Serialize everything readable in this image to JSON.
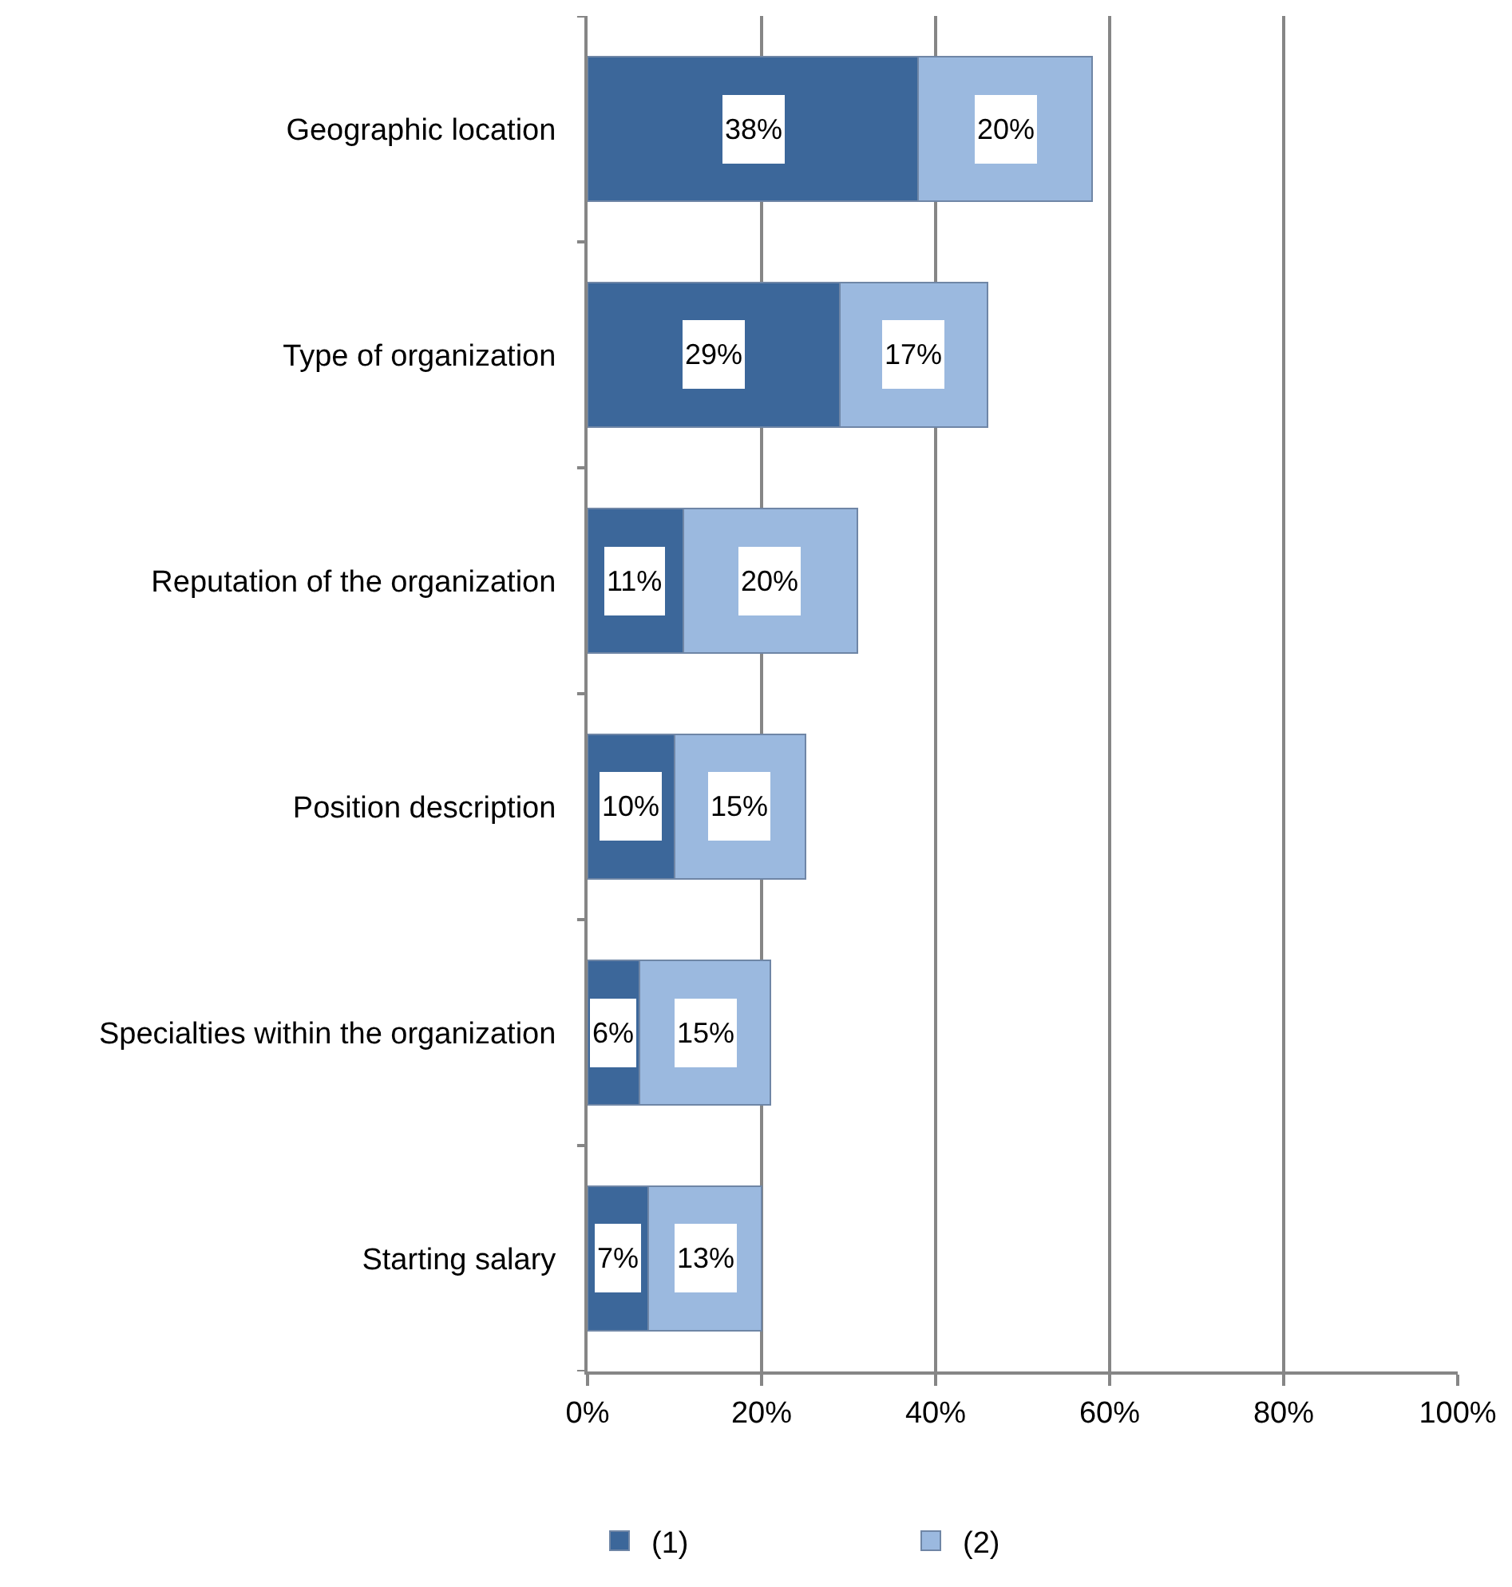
{
  "chart_data": {
    "type": "bar",
    "orientation": "horizontal",
    "stacked": true,
    "categories": [
      "Geographic location",
      "Type of organization",
      "Reputation of the organization",
      "Position description",
      "Specialties within the organization",
      "Starting salary"
    ],
    "series": [
      {
        "name": "(1)",
        "color": "#3c679a",
        "values": [
          38,
          29,
          11,
          10,
          6,
          7
        ],
        "value_labels": [
          "38%",
          "29%",
          "11%",
          "10%",
          "6%",
          "7%"
        ]
      },
      {
        "name": "(2)",
        "color": "#9bb9df",
        "values": [
          20,
          17,
          20,
          15,
          15,
          13
        ],
        "value_labels": [
          "20%",
          "17%",
          "20%",
          "15%",
          "15%",
          "13%"
        ]
      }
    ],
    "xlim": [
      0,
      100
    ],
    "xticks": [
      {
        "value": 0,
        "label": "0%"
      },
      {
        "value": 20,
        "label": "20%"
      },
      {
        "value": 40,
        "label": "40%"
      },
      {
        "value": 60,
        "label": "60%"
      },
      {
        "value": 80,
        "label": "80%"
      },
      {
        "value": 100,
        "label": "100%"
      }
    ],
    "grid": "x",
    "legend": "bottom"
  }
}
